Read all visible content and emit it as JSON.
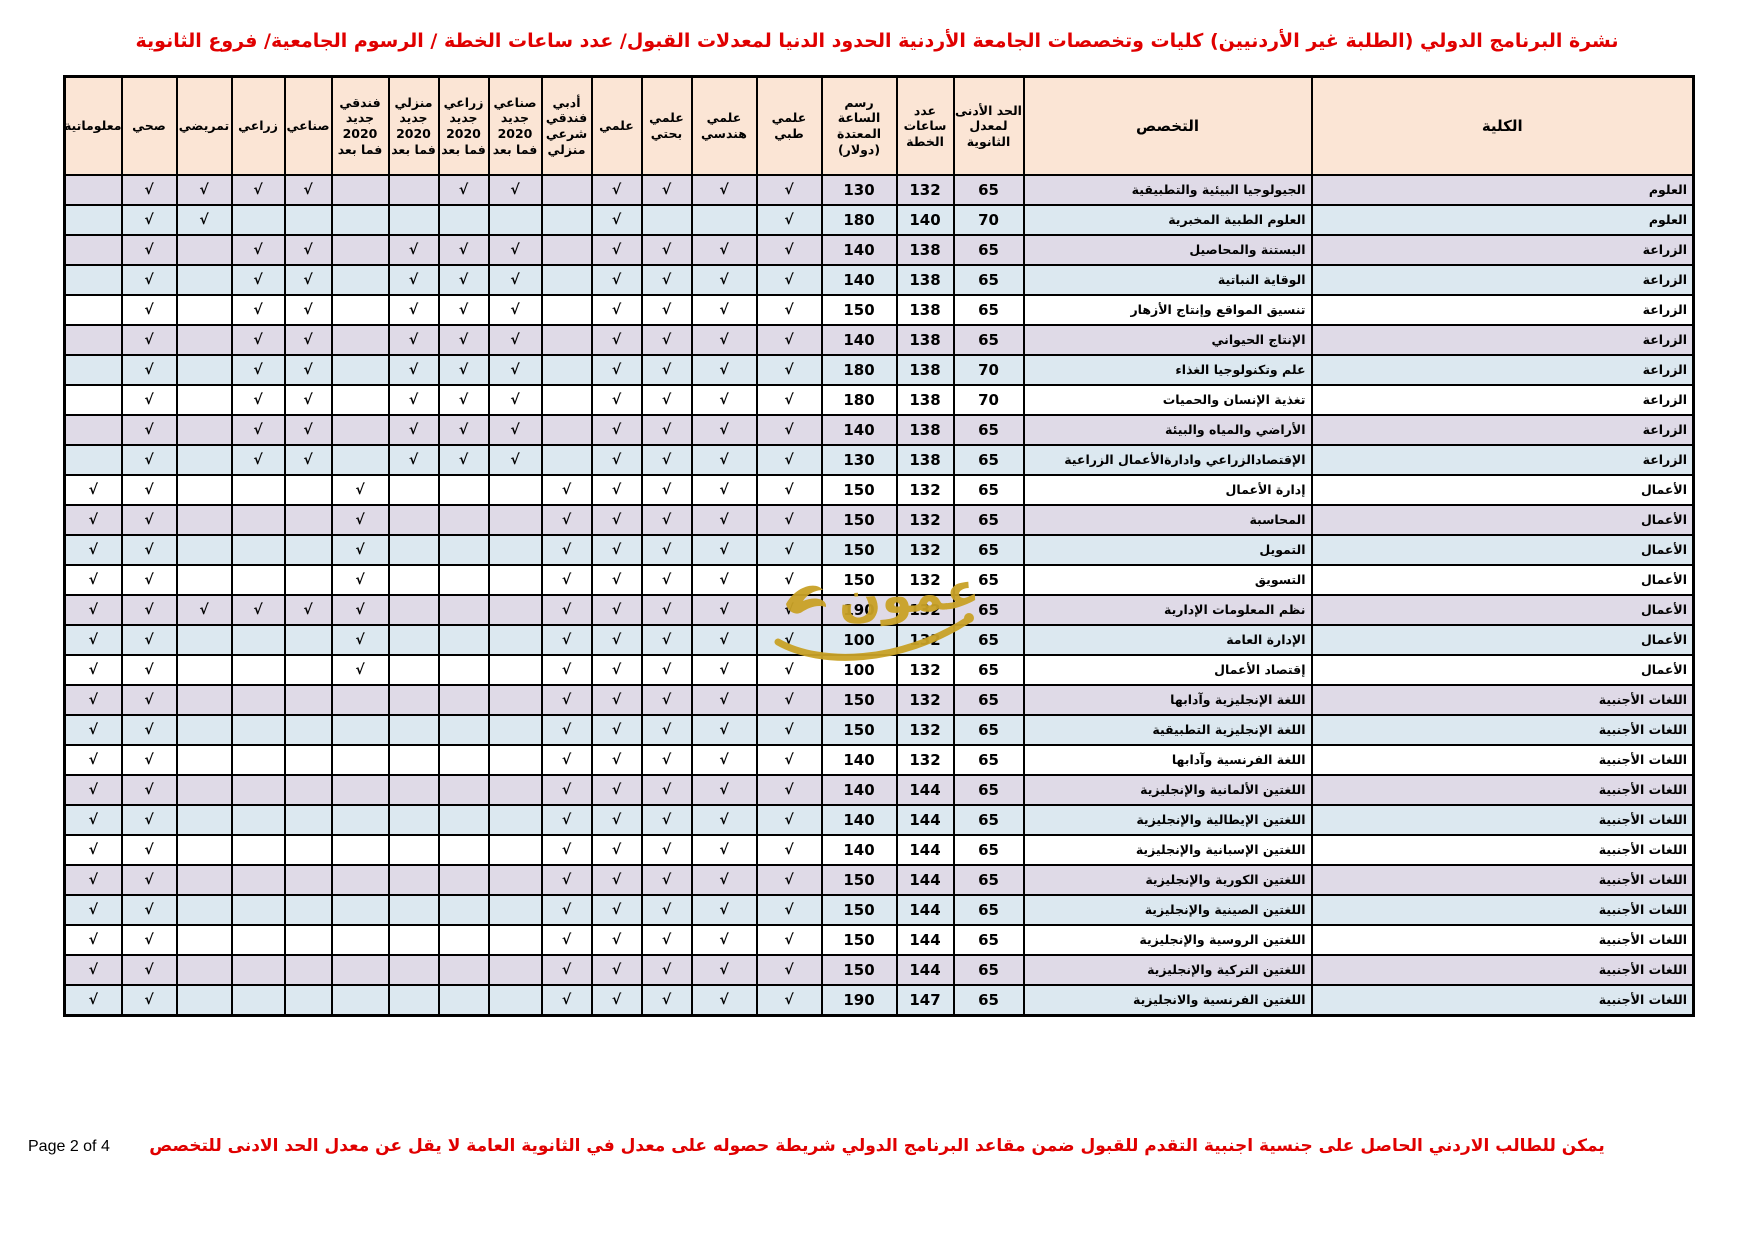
{
  "page": {
    "title": "نشرة البرنامج الدولي (الطلبة غير الأردنيين) كليات وتخصصات الجامعة الأردنية الحدود الدنيا لمعدلات القبول/ عدد ساعات الخطة / الرسوم الجامعية/ فروع الثانوية",
    "footer_note": "يمكن للطالب الاردني الحاصل على جنسية اجنبية التقدم للقبول ضمن مقاعد البرنامج الدولي شريطة حصوله على معدل في الثانوية العامة لا يقل عن معدل الحد الادنى للتخصص",
    "page_label": "Page 2 of 4",
    "watermark_text": "عمون"
  },
  "colors": {
    "header_bg": "#FBE5D5",
    "row_purple": "#DFDAE7",
    "row_blue": "#DCE8F0",
    "row_white": "#FFFFFF",
    "title_red": "#E00000",
    "watermark_gold": "#C9A227",
    "border": "#000000"
  },
  "table": {
    "check_glyph": "√",
    "columns": [
      {
        "key": "college",
        "label": "الكلية"
      },
      {
        "key": "specialization",
        "label": "التخصص"
      },
      {
        "key": "min_gpa",
        "label": "الحد الأدنى\nلمعدل\nالثانوية"
      },
      {
        "key": "plan_hours",
        "label": "عدد\nساعات\nالخطة"
      },
      {
        "key": "fee_usd",
        "label": "رسم\nالساعة\nالمعتدة\n(دولار)"
      },
      {
        "key": "ilmi_tibbi",
        "label": "علمي\nطبي"
      },
      {
        "key": "ilmi_handasi",
        "label": "علمي\nهندسي"
      },
      {
        "key": "ilmi_bahti",
        "label": "علمي\nبحتي"
      },
      {
        "key": "ilmi",
        "label": "علمي"
      },
      {
        "key": "adabi_funduqi_shari_manzili",
        "label": "أدبي\nفندقي\nشرعي\nمنزلي"
      },
      {
        "key": "sinai_jadid_2020",
        "label": "صناعي\nجديد\n2020\nفما بعد"
      },
      {
        "key": "zirai_jadid_2020",
        "label": "زراعي\nجديد\n2020\nفما بعد"
      },
      {
        "key": "manzili_jadid_2020",
        "label": "منزلي\nجديد\n2020\nفما بعد"
      },
      {
        "key": "funduqi_jadid_2020",
        "label": "فندقي\nجديد\n2020\nفما بعد"
      },
      {
        "key": "sinai",
        "label": "صناعي"
      },
      {
        "key": "zirai",
        "label": "زراعي"
      },
      {
        "key": "tamridi",
        "label": "تمريضي"
      },
      {
        "key": "sihhi",
        "label": "صحي"
      },
      {
        "key": "malumatia",
        "label": "معلوماتية"
      }
    ],
    "check_keys": [
      "ilmi_tibbi",
      "ilmi_handasi",
      "ilmi_bahti",
      "ilmi",
      "adabi_funduqi_shari_manzili",
      "sinai_jadid_2020",
      "zirai_jadid_2020",
      "manzili_jadid_2020",
      "funduqi_jadid_2020",
      "sinai",
      "zirai",
      "tamridi",
      "sihhi",
      "malumatia"
    ],
    "rows": [
      {
        "college": "العلوم",
        "specialization": "الجيولوجيا البيئية والتطبيقية",
        "min_gpa": "65",
        "plan_hours": "132",
        "fee_usd": "130",
        "tint": "p",
        "checks": [
          1,
          1,
          1,
          1,
          0,
          1,
          1,
          0,
          0,
          1,
          1,
          1,
          1,
          0
        ]
      },
      {
        "college": "العلوم",
        "specialization": "العلوم الطبية المخبرية",
        "min_gpa": "70",
        "plan_hours": "140",
        "fee_usd": "180",
        "tint": "b",
        "checks": [
          1,
          0,
          0,
          1,
          0,
          0,
          0,
          0,
          0,
          0,
          0,
          1,
          1,
          0
        ]
      },
      {
        "college": "الزراعة",
        "specialization": "البستنة والمحاصيل",
        "min_gpa": "65",
        "plan_hours": "138",
        "fee_usd": "140",
        "tint": "p",
        "checks": [
          1,
          1,
          1,
          1,
          0,
          1,
          1,
          1,
          0,
          1,
          1,
          0,
          1,
          0
        ]
      },
      {
        "college": "الزراعة",
        "specialization": "الوقاية النباتية",
        "min_gpa": "65",
        "plan_hours": "138",
        "fee_usd": "140",
        "tint": "b",
        "checks": [
          1,
          1,
          1,
          1,
          0,
          1,
          1,
          1,
          0,
          1,
          1,
          0,
          1,
          0
        ]
      },
      {
        "college": "الزراعة",
        "specialization": "تنسيق المواقع وإنتاج الأزهار",
        "min_gpa": "65",
        "plan_hours": "138",
        "fee_usd": "150",
        "tint": "w",
        "checks": [
          1,
          1,
          1,
          1,
          0,
          1,
          1,
          1,
          0,
          1,
          1,
          0,
          1,
          0
        ]
      },
      {
        "college": "الزراعة",
        "specialization": "الإنتاج الحيواني",
        "min_gpa": "65",
        "plan_hours": "138",
        "fee_usd": "140",
        "tint": "p",
        "checks": [
          1,
          1,
          1,
          1,
          0,
          1,
          1,
          1,
          0,
          1,
          1,
          0,
          1,
          0
        ]
      },
      {
        "college": "الزراعة",
        "specialization": "علم وتكنولوجيا الغذاء",
        "min_gpa": "70",
        "plan_hours": "138",
        "fee_usd": "180",
        "tint": "b",
        "checks": [
          1,
          1,
          1,
          1,
          0,
          1,
          1,
          1,
          0,
          1,
          1,
          0,
          1,
          0
        ]
      },
      {
        "college": "الزراعة",
        "specialization": "تغذية الإنسان والحميات",
        "min_gpa": "70",
        "plan_hours": "138",
        "fee_usd": "180",
        "tint": "w",
        "checks": [
          1,
          1,
          1,
          1,
          0,
          1,
          1,
          1,
          0,
          1,
          1,
          0,
          1,
          0
        ]
      },
      {
        "college": "الزراعة",
        "specialization": "الأراضي والمياه والبيئة",
        "min_gpa": "65",
        "plan_hours": "138",
        "fee_usd": "140",
        "tint": "p",
        "checks": [
          1,
          1,
          1,
          1,
          0,
          1,
          1,
          1,
          0,
          1,
          1,
          0,
          1,
          0
        ]
      },
      {
        "college": "الزراعة",
        "specialization": "الإقتصادالزراعي وادارةالأعمال الزراعية",
        "min_gpa": "65",
        "plan_hours": "138",
        "fee_usd": "130",
        "tint": "b",
        "checks": [
          1,
          1,
          1,
          1,
          0,
          1,
          1,
          1,
          0,
          1,
          1,
          0,
          1,
          0
        ]
      },
      {
        "college": "الأعمال",
        "specialization": "إدارة الأعمال",
        "min_gpa": "65",
        "plan_hours": "132",
        "fee_usd": "150",
        "tint": "w",
        "checks": [
          1,
          1,
          1,
          1,
          1,
          0,
          0,
          0,
          1,
          0,
          0,
          0,
          1,
          1
        ]
      },
      {
        "college": "الأعمال",
        "specialization": "المحاسبة",
        "min_gpa": "65",
        "plan_hours": "132",
        "fee_usd": "150",
        "tint": "p",
        "checks": [
          1,
          1,
          1,
          1,
          1,
          0,
          0,
          0,
          1,
          0,
          0,
          0,
          1,
          1
        ]
      },
      {
        "college": "الأعمال",
        "specialization": "التمويل",
        "min_gpa": "65",
        "plan_hours": "132",
        "fee_usd": "150",
        "tint": "b",
        "checks": [
          1,
          1,
          1,
          1,
          1,
          0,
          0,
          0,
          1,
          0,
          0,
          0,
          1,
          1
        ]
      },
      {
        "college": "الأعمال",
        "specialization": "التسويق",
        "min_gpa": "65",
        "plan_hours": "132",
        "fee_usd": "150",
        "tint": "w",
        "checks": [
          1,
          1,
          1,
          1,
          1,
          0,
          0,
          0,
          1,
          0,
          0,
          0,
          1,
          1
        ]
      },
      {
        "college": "الأعمال",
        "specialization": "نظم المعلومات الإدارية",
        "min_gpa": "65",
        "plan_hours": "132",
        "fee_usd": "190",
        "tint": "p",
        "checks": [
          1,
          1,
          1,
          1,
          1,
          0,
          0,
          0,
          1,
          1,
          1,
          1,
          1,
          1
        ]
      },
      {
        "college": "الأعمال",
        "specialization": "الإدارة العامة",
        "min_gpa": "65",
        "plan_hours": "132",
        "fee_usd": "100",
        "tint": "b",
        "checks": [
          1,
          1,
          1,
          1,
          1,
          0,
          0,
          0,
          1,
          0,
          0,
          0,
          1,
          1
        ]
      },
      {
        "college": "الأعمال",
        "specialization": "إقتصاد الأعمال",
        "min_gpa": "65",
        "plan_hours": "132",
        "fee_usd": "100",
        "tint": "w",
        "checks": [
          1,
          1,
          1,
          1,
          1,
          0,
          0,
          0,
          1,
          0,
          0,
          0,
          1,
          1
        ]
      },
      {
        "college": "اللغات الأجنبية",
        "specialization": "اللغة الإنجليزية وآدابها",
        "min_gpa": "65",
        "plan_hours": "132",
        "fee_usd": "150",
        "tint": "p",
        "checks": [
          1,
          1,
          1,
          1,
          1,
          0,
          0,
          0,
          0,
          0,
          0,
          0,
          1,
          1
        ]
      },
      {
        "college": "اللغات الأجنبية",
        "specialization": "اللغة الإنجليزية التطبيقية",
        "min_gpa": "65",
        "plan_hours": "132",
        "fee_usd": "150",
        "tint": "b",
        "checks": [
          1,
          1,
          1,
          1,
          1,
          0,
          0,
          0,
          0,
          0,
          0,
          0,
          1,
          1
        ]
      },
      {
        "college": "اللغات الأجنبية",
        "specialization": "اللغة الفرنسية وآدابها",
        "min_gpa": "65",
        "plan_hours": "132",
        "fee_usd": "140",
        "tint": "w",
        "checks": [
          1,
          1,
          1,
          1,
          1,
          0,
          0,
          0,
          0,
          0,
          0,
          0,
          1,
          1
        ]
      },
      {
        "college": "اللغات الأجنبية",
        "specialization": "اللغتين الألمانية والإنجليزية",
        "min_gpa": "65",
        "plan_hours": "144",
        "fee_usd": "140",
        "tint": "p",
        "checks": [
          1,
          1,
          1,
          1,
          1,
          0,
          0,
          0,
          0,
          0,
          0,
          0,
          1,
          1
        ]
      },
      {
        "college": "اللغات الأجنبية",
        "specialization": "اللغتين الإيطالية والإنجليزية",
        "min_gpa": "65",
        "plan_hours": "144",
        "fee_usd": "140",
        "tint": "b",
        "checks": [
          1,
          1,
          1,
          1,
          1,
          0,
          0,
          0,
          0,
          0,
          0,
          0,
          1,
          1
        ]
      },
      {
        "college": "اللغات الأجنبية",
        "specialization": "اللغتين الإسبانية والإنجليزية",
        "min_gpa": "65",
        "plan_hours": "144",
        "fee_usd": "140",
        "tint": "w",
        "checks": [
          1,
          1,
          1,
          1,
          1,
          0,
          0,
          0,
          0,
          0,
          0,
          0,
          1,
          1
        ]
      },
      {
        "college": "اللغات الأجنبية",
        "specialization": "اللغتين الكورية والإنجليزية",
        "min_gpa": "65",
        "plan_hours": "144",
        "fee_usd": "150",
        "tint": "p",
        "checks": [
          1,
          1,
          1,
          1,
          1,
          0,
          0,
          0,
          0,
          0,
          0,
          0,
          1,
          1
        ]
      },
      {
        "college": "اللغات الأجنبية",
        "specialization": "اللغتين الصينية والإنجليزية",
        "min_gpa": "65",
        "plan_hours": "144",
        "fee_usd": "150",
        "tint": "b",
        "checks": [
          1,
          1,
          1,
          1,
          1,
          0,
          0,
          0,
          0,
          0,
          0,
          0,
          1,
          1
        ]
      },
      {
        "college": "اللغات الأجنبية",
        "specialization": "اللغتين الروسية والإنجليزية",
        "min_gpa": "65",
        "plan_hours": "144",
        "fee_usd": "150",
        "tint": "w",
        "checks": [
          1,
          1,
          1,
          1,
          1,
          0,
          0,
          0,
          0,
          0,
          0,
          0,
          1,
          1
        ]
      },
      {
        "college": "اللغات الأجنبية",
        "specialization": "اللغتين التركية والإنجليزية",
        "min_gpa": "65",
        "plan_hours": "144",
        "fee_usd": "150",
        "tint": "p",
        "checks": [
          1,
          1,
          1,
          1,
          1,
          0,
          0,
          0,
          0,
          0,
          0,
          0,
          1,
          1
        ]
      },
      {
        "college": "اللغات الأجنبية",
        "specialization": "اللغتين الفرنسية والانجليزية",
        "min_gpa": "65",
        "plan_hours": "147",
        "fee_usd": "190",
        "tint": "b",
        "checks": [
          1,
          1,
          1,
          1,
          1,
          0,
          0,
          0,
          0,
          0,
          0,
          0,
          1,
          1
        ]
      }
    ]
  }
}
